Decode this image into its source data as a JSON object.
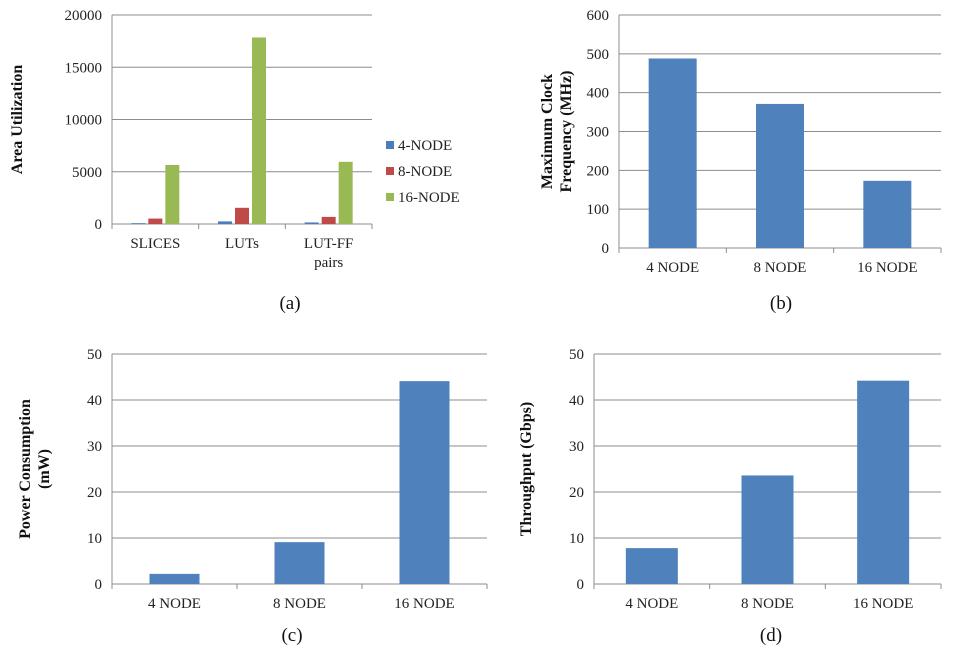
{
  "chart_data": [
    {
      "id": "a",
      "type": "bar",
      "caption": "(a)",
      "ylabel": "Area Utilization",
      "ylim": [
        0,
        20000
      ],
      "yticks": [
        0,
        5000,
        10000,
        15000,
        20000
      ],
      "categories": [
        [
          "SLICES"
        ],
        [
          "LUTs"
        ],
        [
          "LUT-FF",
          "pairs"
        ]
      ],
      "grid": true,
      "legend": "right",
      "series": [
        {
          "name": "4-NODE",
          "color": "#4a7ebb",
          "values": [
            80,
            250,
            150
          ]
        },
        {
          "name": "8-NODE",
          "color": "#be4b48",
          "values": [
            520,
            1550,
            680
          ]
        },
        {
          "name": "16-NODE",
          "color": "#98b954",
          "values": [
            5650,
            17850,
            5950
          ]
        }
      ]
    },
    {
      "id": "b",
      "type": "bar",
      "caption": "(b)",
      "ylabel": [
        "Maximum Clock",
        "Frequency (MHz)"
      ],
      "ylim": [
        0,
        600
      ],
      "yticks": [
        0,
        100,
        200,
        300,
        400,
        500,
        600
      ],
      "categories": [
        [
          "4 NODE"
        ],
        [
          "8 NODE"
        ],
        [
          "16 NODE"
        ]
      ],
      "grid": true,
      "series": [
        {
          "color": "#4f81bd",
          "values": [
            488,
            371,
            173
          ]
        }
      ]
    },
    {
      "id": "c",
      "type": "bar",
      "caption": "(c)",
      "ylabel": [
        "Power Consumption",
        "(mW)"
      ],
      "ylim": [
        0,
        50
      ],
      "yticks": [
        0,
        10,
        20,
        30,
        40,
        50
      ],
      "categories": [
        [
          "4 NODE"
        ],
        [
          "8 NODE"
        ],
        [
          "16 NODE"
        ]
      ],
      "grid": true,
      "series": [
        {
          "color": "#4f81bd",
          "values": [
            2.2,
            9.1,
            44.1
          ]
        }
      ]
    },
    {
      "id": "d",
      "type": "bar",
      "caption": "(d)",
      "ylabel": "Throughput (Gbps)",
      "ylim": [
        0,
        50
      ],
      "yticks": [
        0,
        10,
        20,
        30,
        40,
        50
      ],
      "categories": [
        [
          "4 NODE"
        ],
        [
          "8 NODE"
        ],
        [
          "16 NODE"
        ]
      ],
      "grid": true,
      "series": [
        {
          "color": "#4f81bd",
          "values": [
            7.8,
            23.6,
            44.2
          ]
        }
      ]
    }
  ]
}
